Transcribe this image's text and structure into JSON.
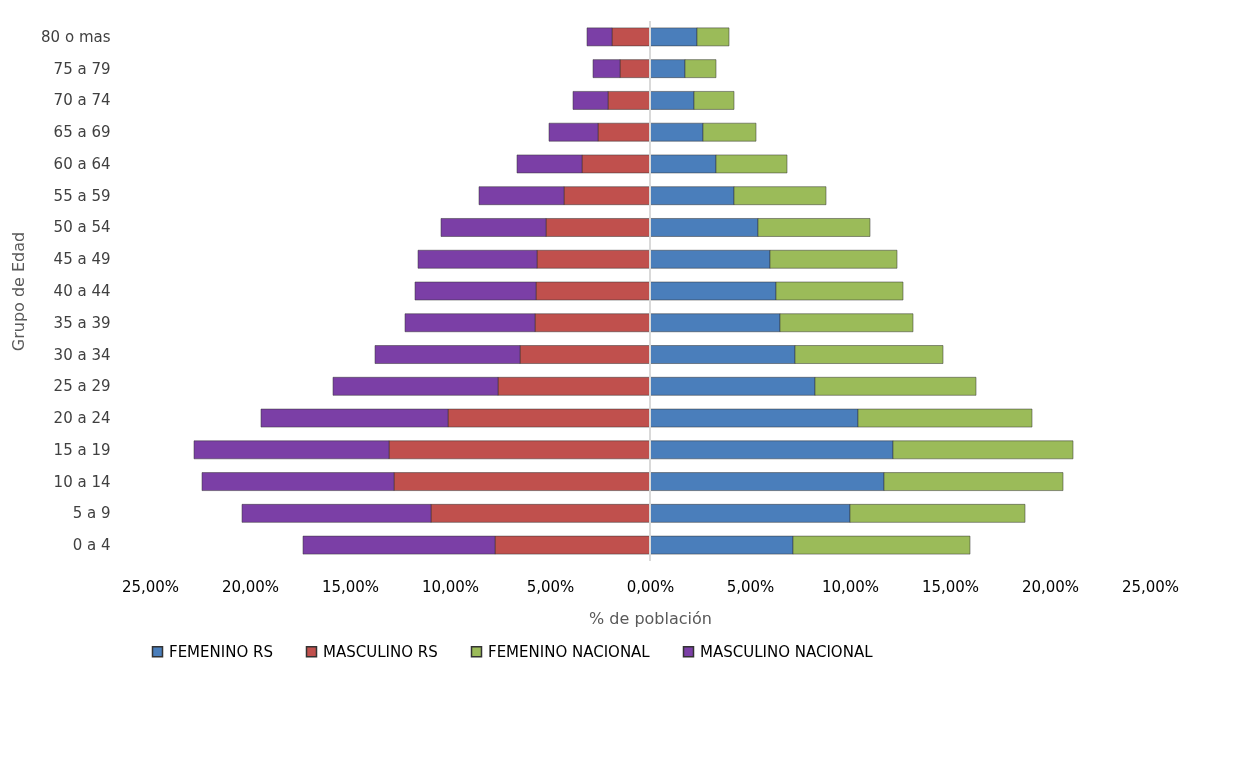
{
  "chart_data": {
    "type": "bar",
    "orientation": "horizontal",
    "stacked": true,
    "categories": [
      "80 o mas",
      "75 a 79",
      "70 a 74",
      "65 a 69",
      "60 a 64",
      "55 a 59",
      "50 a 54",
      "45 a 49",
      "40 a 44",
      "35 a 39",
      "30 a 34",
      "25 a 29",
      "20 a 24",
      "15 a 19",
      "10 a 14",
      "5 a 9",
      "0 a 4"
    ],
    "series": [
      {
        "name": "FEMENINO RS",
        "color": "#4a7ebb",
        "values": [
          2.35,
          1.75,
          2.2,
          2.65,
          3.3,
          4.2,
          5.4,
          6.0,
          6.3,
          6.5,
          7.25,
          8.25,
          10.4,
          12.15,
          11.7,
          10.0,
          7.15
        ]
      },
      {
        "name": "MASCULINO RS",
        "color": "#c0504d",
        "values": [
          -1.9,
          -1.5,
          -2.1,
          -2.6,
          -3.4,
          -4.3,
          -5.2,
          -5.65,
          -5.7,
          -5.75,
          -6.5,
          -7.6,
          -10.1,
          -13.05,
          -12.8,
          -10.95,
          -7.75
        ]
      },
      {
        "name": "FEMENINO NACIONAL",
        "color": "#9bbb59",
        "values": [
          1.6,
          1.55,
          2.0,
          2.65,
          3.55,
          4.6,
          5.6,
          6.35,
          6.35,
          6.65,
          7.4,
          8.05,
          8.7,
          9.0,
          8.95,
          8.75,
          8.85
        ]
      },
      {
        "name": "MASCULINO NACIONAL",
        "color": "#7b3fa6",
        "values": [
          -1.25,
          -1.35,
          -1.75,
          -2.45,
          -3.25,
          -4.25,
          -5.25,
          -5.95,
          -6.05,
          -6.5,
          -7.25,
          -8.25,
          -9.35,
          -9.75,
          -9.6,
          -9.45,
          -9.6
        ]
      }
    ],
    "xlim": [
      -25,
      25
    ],
    "xticks": [
      {
        "value": -25,
        "label": "25,00%"
      },
      {
        "value": -20,
        "label": "20,00%"
      },
      {
        "value": -15,
        "label": "15,00%"
      },
      {
        "value": -10,
        "label": "10,00%"
      },
      {
        "value": -5,
        "label": "5,00%"
      },
      {
        "value": 0,
        "label": "0,00%"
      },
      {
        "value": 5,
        "label": "5,00%"
      },
      {
        "value": 10,
        "label": "10,00%"
      },
      {
        "value": 15,
        "label": "15,00%"
      },
      {
        "value": 20,
        "label": "20,00%"
      },
      {
        "value": 25,
        "label": "25,00%"
      }
    ],
    "xlabel": "% de población",
    "ylabel": "Grupo de Edad",
    "legend": "bottom"
  }
}
